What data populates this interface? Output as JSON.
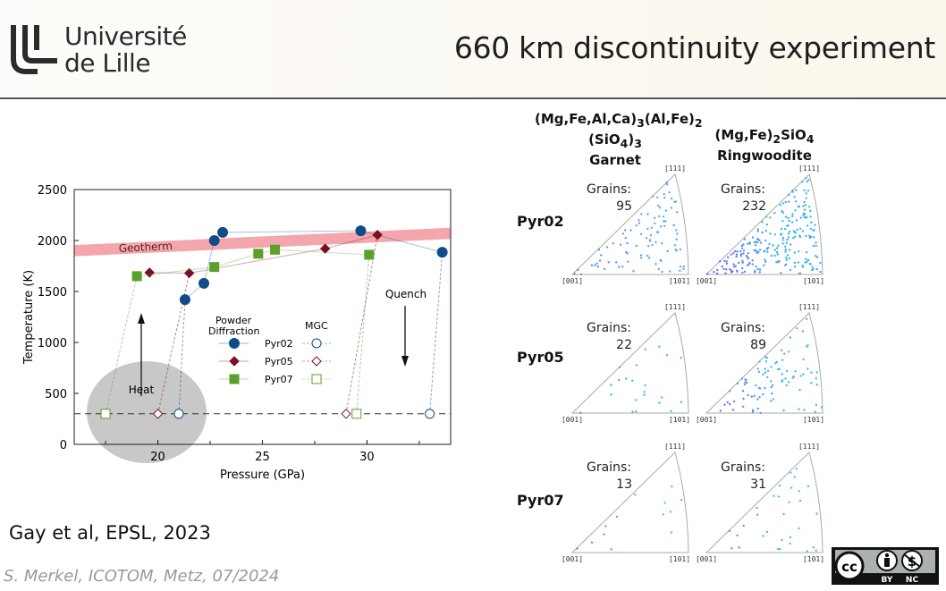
{
  "header": {
    "logo_line1": "Université",
    "logo_line2": "de Lille",
    "title": "660 km discontinuity experiment"
  },
  "chart_data": {
    "type": "scatter",
    "xlabel": "Pressure (GPa)",
    "ylabel": "Temperature (K)",
    "xlim": [
      16,
      34
    ],
    "ylim": [
      0,
      2500
    ],
    "xticks": [
      "20",
      "25",
      "30"
    ],
    "xtick_values": [
      20,
      25,
      30
    ],
    "yticks": [
      "0",
      "500",
      "1000",
      "1500",
      "2000",
      "2500"
    ],
    "ytick_values": [
      0,
      500,
      1000,
      1500,
      2000,
      2500
    ],
    "reference_line_y": 300,
    "geotherm": {
      "label": "Geotherm",
      "x": [
        16,
        34
      ],
      "y": [
        1900,
        2070
      ],
      "color": "#f4a6ad"
    },
    "annotations": {
      "heat": "Heat",
      "quench": "Quench"
    },
    "legend": {
      "powder_title_1": "Powder",
      "powder_title_2": "Diffraction",
      "mgc_title": "MGC"
    },
    "series": [
      {
        "name": "Pyr02",
        "color": "#0f4c8a",
        "marker": "circle",
        "powder": {
          "x": [
            21.3,
            22.2,
            22.7,
            23.1,
            29.7,
            33.6
          ],
          "y": [
            1420,
            1580,
            2000,
            2080,
            2095,
            1885
          ]
        },
        "mgc": {
          "x": [
            21,
            33
          ],
          "y": [
            300,
            300
          ]
        },
        "links": [
          [
            0,
            0
          ],
          [
            1,
            5
          ]
        ]
      },
      {
        "name": "Pyr05",
        "color": "#7a0f24",
        "marker": "diamond",
        "powder": {
          "x": [
            19.6,
            21.5,
            28,
            30.5
          ],
          "y": [
            1685,
            1680,
            1920,
            2055
          ]
        },
        "mgc": {
          "x": [
            20,
            29
          ],
          "y": [
            300,
            300
          ]
        },
        "links": [
          [
            0,
            1
          ],
          [
            1,
            3
          ]
        ]
      },
      {
        "name": "Pyr07",
        "color": "#5aa02c",
        "marker": "square",
        "powder": {
          "x": [
            19,
            22.7,
            24.8,
            25.6,
            30.1
          ],
          "y": [
            1650,
            1740,
            1870,
            1910,
            1860
          ]
        },
        "mgc": {
          "x": [
            17.5,
            29.5
          ],
          "y": [
            300,
            300
          ]
        },
        "links": [
          [
            0,
            0
          ],
          [
            1,
            4
          ]
        ]
      }
    ]
  },
  "citation": "Gay et al, EPSL, 2023",
  "footer": "S. Merkel, ICOTOM, Metz, 07/2024",
  "pole_figures": {
    "columns": [
      {
        "line1": "(Mg,Fe,Al,Ca)",
        "sub1": "3",
        "line1b": "(Al,Fe)",
        "sub1b": "2",
        "line2": "(SiO",
        "sub2": "4",
        "line2b": ")",
        "sub2b": "3",
        "name": "Garnet"
      },
      {
        "line1": "(Mg,Fe)",
        "sub1": "2",
        "line1b": "SiO",
        "sub1b": "4",
        "name": "Ringwoodite"
      }
    ],
    "corner_labels": {
      "c001": "[001]",
      "c101": "[101]",
      "c111": "[111]"
    },
    "grains_label": "Grains:",
    "rows": [
      {
        "label": "Pyr02",
        "garnet": {
          "grains": "95",
          "colors": [
            "#4a8ee8",
            "#5aa8f0"
          ]
        },
        "ringwoodite": {
          "grains": "232",
          "colors": [
            "#7b5ff0",
            "#3fb0ee"
          ]
        }
      },
      {
        "label": "Pyr05",
        "garnet": {
          "grains": "22",
          "colors": [
            "#4a8ee8",
            "#3fc0e8"
          ]
        },
        "ringwoodite": {
          "grains": "89",
          "colors": [
            "#7b5ff0",
            "#3fb8ee"
          ]
        }
      },
      {
        "label": "Pyr07",
        "garnet": {
          "grains": "13",
          "colors": [
            "#e040e0",
            "#40c0e8"
          ]
        },
        "ringwoodite": {
          "grains": "31",
          "colors": [
            "#e040e0",
            "#40c0e8"
          ]
        }
      }
    ]
  },
  "license": {
    "cc": "cc",
    "by": "BY",
    "nc": "NC"
  }
}
